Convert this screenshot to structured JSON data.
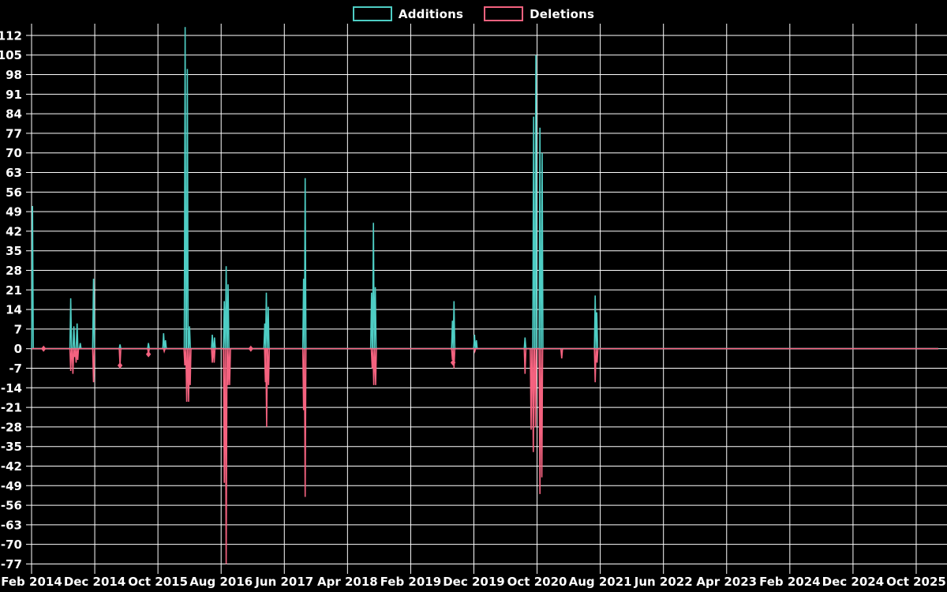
{
  "legend": {
    "additions_label": "Additions",
    "deletions_label": "Deletions"
  },
  "colors": {
    "background": "#000000",
    "grid": "#ffffff",
    "text": "#ffffff",
    "additions": "#4ECDC4",
    "deletions": "#F4627F"
  },
  "chart_data": {
    "type": "line",
    "title": "",
    "xlabel": "",
    "ylabel": "",
    "x_tick_labels": [
      "Feb 2014",
      "Dec 2014",
      "Oct 2015",
      "Aug 2016",
      "Jun 2017",
      "Apr 2018",
      "Feb 2019",
      "Dec 2019",
      "Oct 2020",
      "Aug 2021",
      "Jun 2022",
      "Apr 2023",
      "Feb 2024",
      "Dec 2024",
      "Oct 2025"
    ],
    "x_months_per_tick": 10,
    "y_ticks": [
      112,
      105,
      98,
      91,
      84,
      77,
      70,
      63,
      56,
      49,
      42,
      35,
      28,
      21,
      14,
      7,
      0,
      -7,
      -14,
      -21,
      -28,
      -35,
      -42,
      -49,
      -56,
      -63,
      -70,
      -77
    ],
    "ylim": [
      -77,
      115
    ],
    "grid": true,
    "legend_position": "top-center",
    "baseline_value": 0,
    "line_end_month": 143.5,
    "series": [
      {
        "name": "Additions",
        "color": "#4ECDC4",
        "spikes_month_value": [
          [
            0.15,
            51
          ],
          [
            6.2,
            18
          ],
          [
            6.7,
            8
          ],
          [
            7.2,
            9
          ],
          [
            7.7,
            2
          ],
          [
            9.8,
            25
          ],
          [
            14,
            1.5
          ],
          [
            18.5,
            2
          ],
          [
            20.9,
            5.5
          ],
          [
            21.2,
            3
          ],
          [
            24.3,
            115
          ],
          [
            24.65,
            100
          ],
          [
            25,
            8
          ],
          [
            28.6,
            5
          ],
          [
            28.95,
            4
          ],
          [
            30.5,
            17
          ],
          [
            30.8,
            29.5
          ],
          [
            31.1,
            23
          ],
          [
            36.9,
            9
          ],
          [
            37.15,
            20
          ],
          [
            37.45,
            15
          ],
          [
            43.05,
            25
          ],
          [
            43.3,
            61
          ],
          [
            53.8,
            20
          ],
          [
            54.1,
            45
          ],
          [
            54.4,
            22
          ],
          [
            66.6,
            10
          ],
          [
            66.85,
            17
          ],
          [
            70.1,
            5
          ],
          [
            70.4,
            3
          ],
          [
            78.1,
            4
          ],
          [
            79.45,
            83
          ],
          [
            79.8,
            105
          ],
          [
            80.45,
            79
          ],
          [
            80.8,
            70
          ],
          [
            89.2,
            19
          ],
          [
            89.45,
            13
          ]
        ],
        "markers_month_value": []
      },
      {
        "name": "Deletions",
        "color": "#F4627F",
        "spikes_month_value": [
          [
            6.2,
            -8
          ],
          [
            6.55,
            -9
          ],
          [
            6.8,
            -3
          ],
          [
            7.05,
            -5
          ],
          [
            7.3,
            -4
          ],
          [
            9.8,
            -12
          ],
          [
            14,
            -6
          ],
          [
            18.5,
            -2
          ],
          [
            21,
            -1
          ],
          [
            24.25,
            -6
          ],
          [
            24.55,
            -19
          ],
          [
            24.85,
            -19
          ],
          [
            25.1,
            -13
          ],
          [
            28.6,
            -5
          ],
          [
            28.9,
            -5
          ],
          [
            30.5,
            -48
          ],
          [
            30.8,
            -77
          ],
          [
            31.1,
            -13
          ],
          [
            31.35,
            -13
          ],
          [
            37,
            -12
          ],
          [
            37.2,
            -28
          ],
          [
            37.5,
            -13
          ],
          [
            43.05,
            -22
          ],
          [
            43.3,
            -53
          ],
          [
            53.9,
            -7
          ],
          [
            54.15,
            -13
          ],
          [
            54.45,
            -13
          ],
          [
            66.6,
            -4
          ],
          [
            66.85,
            -7
          ],
          [
            70.15,
            -1
          ],
          [
            78.1,
            -9
          ],
          [
            79.05,
            -29
          ],
          [
            79.4,
            -37
          ],
          [
            79.75,
            -28
          ],
          [
            80.45,
            -52
          ],
          [
            80.75,
            -46
          ],
          [
            83.9,
            -3.5
          ],
          [
            89.2,
            -12
          ],
          [
            89.5,
            -5
          ]
        ],
        "markers_month_value": [
          [
            1.9,
            0
          ],
          [
            14,
            -6
          ],
          [
            18.5,
            -2
          ],
          [
            34.7,
            0
          ],
          [
            66.7,
            -5
          ]
        ]
      }
    ]
  }
}
